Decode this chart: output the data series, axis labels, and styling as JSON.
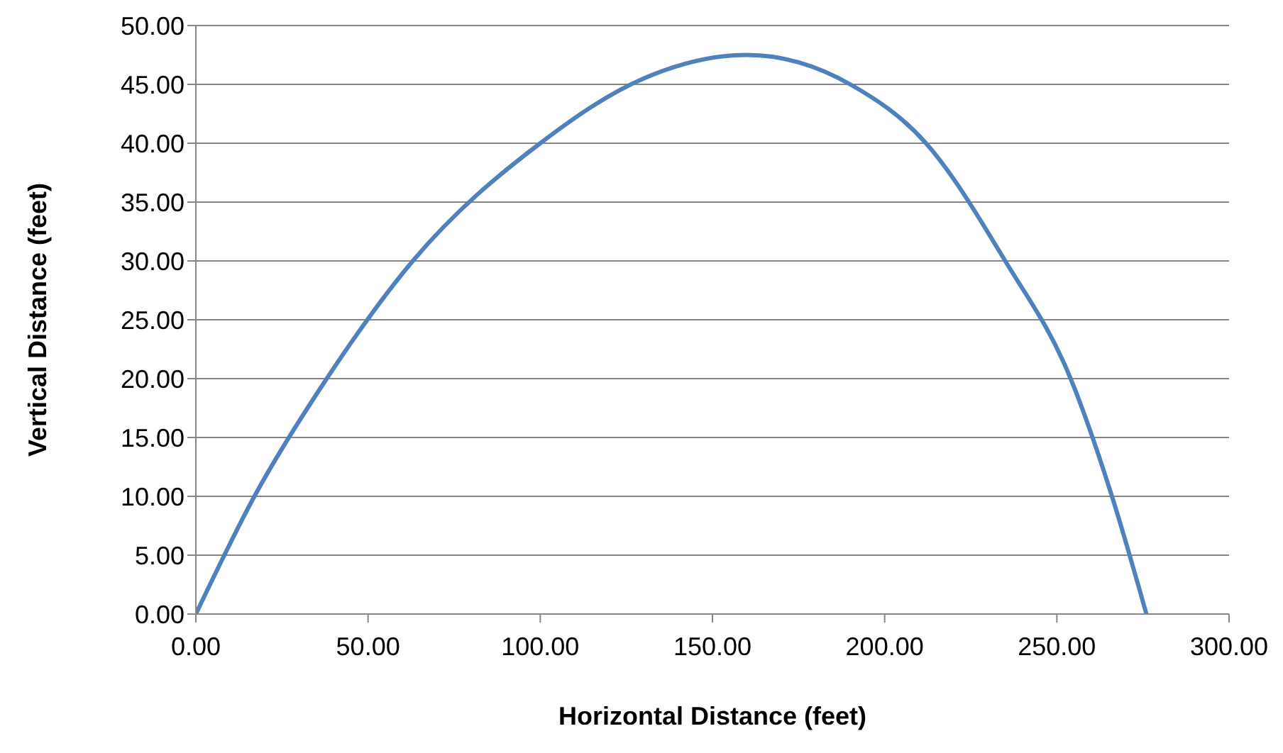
{
  "chart_data": {
    "type": "line",
    "xlabel": "Horizontal Distance (feet)",
    "ylabel": "Vertical Distance (feet)",
    "x": [
      0,
      17,
      38,
      63,
      100,
      130,
      160,
      190,
      212,
      235,
      254,
      266,
      276
    ],
    "series": [
      {
        "color": "#4f81bd",
        "values": [
          0,
          10,
          20,
          30,
          40,
          45.5,
          47.5,
          45,
          40,
          30,
          20,
          10,
          0
        ]
      }
    ],
    "xlim": [
      0,
      300
    ],
    "xticks": [
      {
        "value": 0,
        "label": "0.00"
      },
      {
        "value": 50,
        "label": "50.00"
      },
      {
        "value": 100,
        "label": "100.00"
      },
      {
        "value": 150,
        "label": "150.00"
      },
      {
        "value": 200,
        "label": "200.00"
      },
      {
        "value": 250,
        "label": "250.00"
      },
      {
        "value": 300,
        "label": "300.00"
      }
    ],
    "ylim": [
      0,
      50
    ],
    "yticks": [
      {
        "value": 0,
        "label": "0.00"
      },
      {
        "value": 5,
        "label": "5.00"
      },
      {
        "value": 10,
        "label": "10.00"
      },
      {
        "value": 15,
        "label": "15.00"
      },
      {
        "value": 20,
        "label": "20.00"
      },
      {
        "value": 25,
        "label": "25.00"
      },
      {
        "value": 30,
        "label": "30.00"
      },
      {
        "value": 35,
        "label": "35.00"
      },
      {
        "value": 40,
        "label": "40.00"
      },
      {
        "value": 45,
        "label": "45.00"
      },
      {
        "value": 50,
        "label": "50.00"
      }
    ],
    "grid": "y",
    "marker": "none",
    "line_style": "solid"
  }
}
